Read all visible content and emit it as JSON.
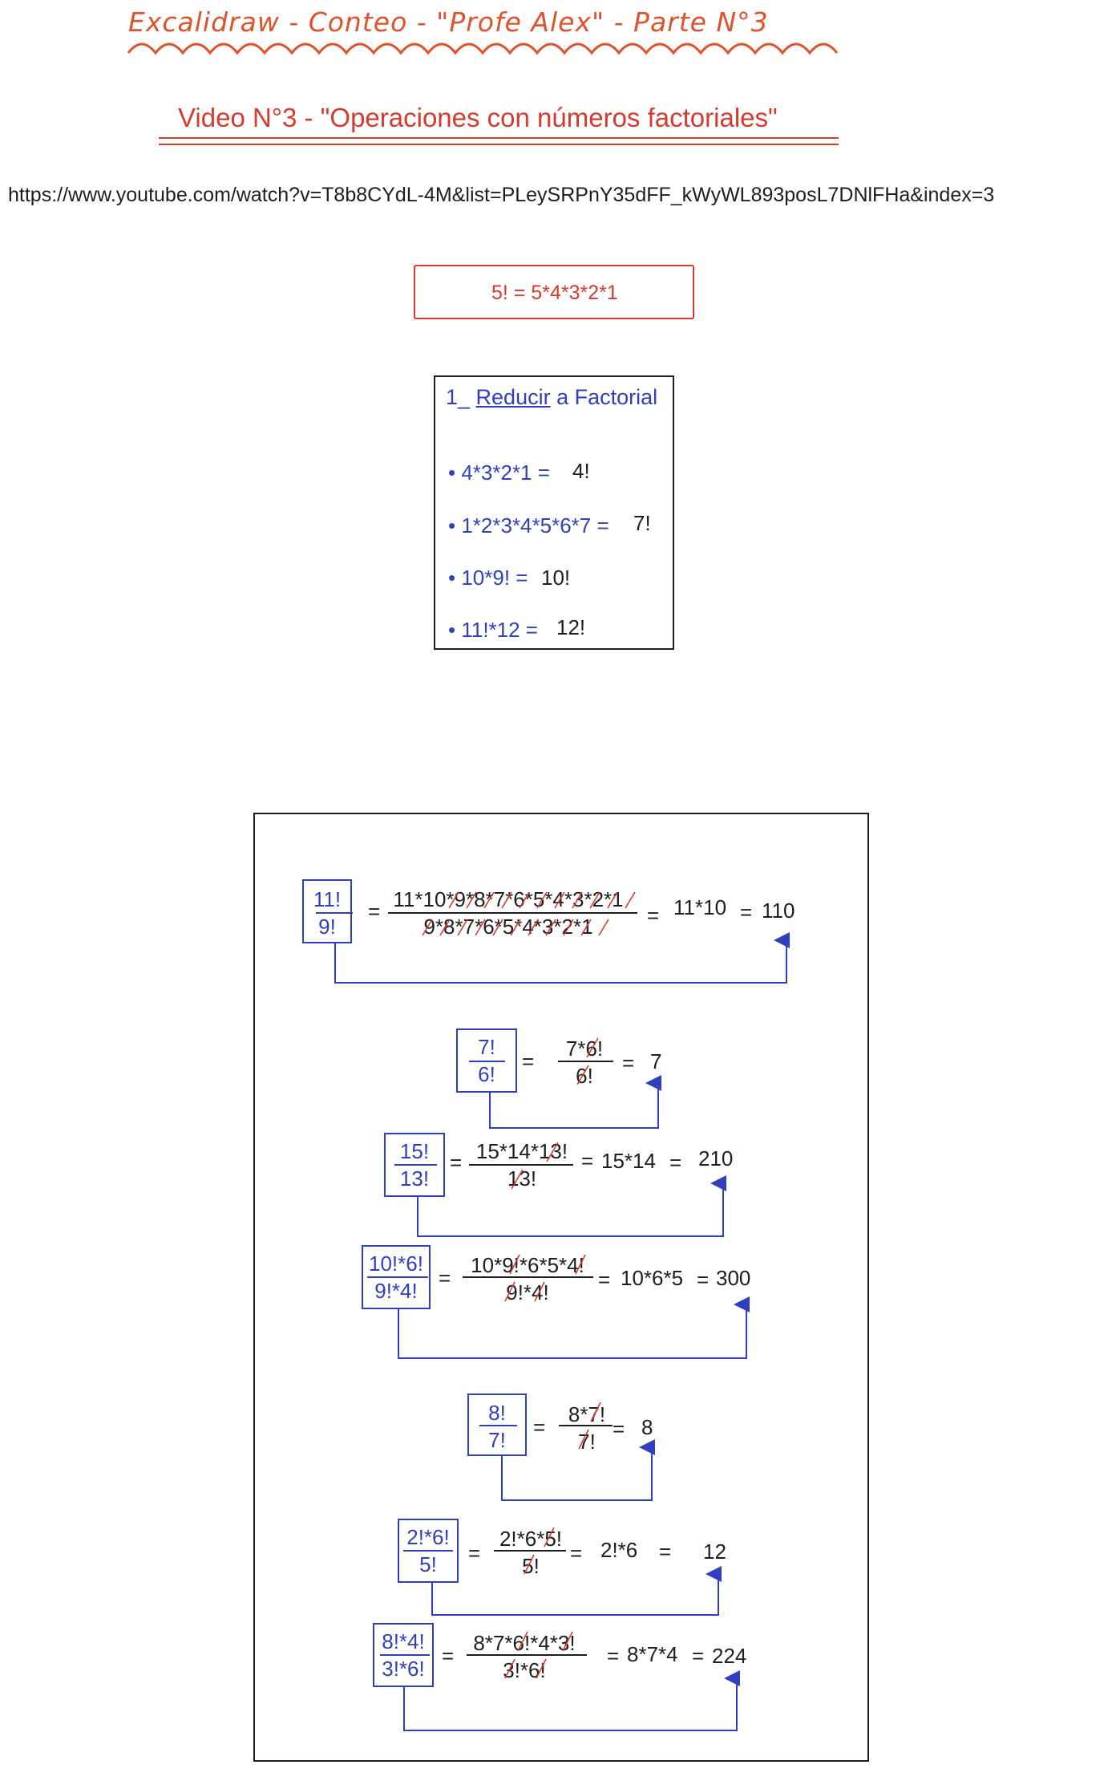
{
  "header": {
    "title": "Excalidraw - Conteo - \"Profe Alex\" - Parte N°3",
    "subtitle": "Video N°3 - \"Operaciones con números factoriales\"",
    "url": "https://www.youtube.com/watch?v=T8b8CYdL-4M&list=PLeySRPnY35dFF_kWyWL893posL7DNlFHa&index=3"
  },
  "definition": {
    "formula": "5! = 5*4*3*2*1"
  },
  "reduce": {
    "heading_prefix": "1_ ",
    "heading_underlined": "Reducir",
    "heading_suffix": " a Factorial",
    "items": [
      {
        "expr": "• 4*3*2*1 =",
        "result": "4!"
      },
      {
        "expr": "• 1*2*3*4*5*6*7 =",
        "result": "7!"
      },
      {
        "expr": "• 10*9! =",
        "result": "10!"
      },
      {
        "expr": "• 11!*12 =",
        "result": "12!"
      }
    ]
  },
  "operations": [
    {
      "num": "11!",
      "den": "9!",
      "eq": "=",
      "expand_num": "11*10*9*8*7*6*5*4*3*2*1",
      "expand_den": "9*8*7*6*5*4*3*2*1",
      "eq2": "=",
      "step": "11*10",
      "eq3": "=",
      "result": "110"
    },
    {
      "num": "7!",
      "den": "6!",
      "eq": "=",
      "expand_num": "7*6!",
      "expand_den": "6!",
      "eq2": "=",
      "result": "7"
    },
    {
      "num": "15!",
      "den": "13!",
      "eq": "=",
      "expand_num": "15*14*13!",
      "expand_den": "13!",
      "eq2": "=",
      "step": "15*14",
      "eq3": "=",
      "result": "210"
    },
    {
      "num": "10!*6!",
      "den": "9!*4!",
      "eq": "=",
      "expand_num": "10*9!*6*5*4!",
      "expand_den": "9!*4!",
      "eq2": "=",
      "step": "10*6*5",
      "eq3": "=",
      "result": "300"
    },
    {
      "num": "8!",
      "den": "7!",
      "eq": "=",
      "expand_num": "8*7!",
      "expand_den": "7!",
      "eq2": "=",
      "result": "8"
    },
    {
      "num": "2!*6!",
      "den": "5!",
      "eq": "=",
      "expand_num": "2!*6*5!",
      "expand_den": "5!",
      "eq2": "=",
      "step": "2!*6",
      "eq3": "=",
      "result": "12"
    },
    {
      "num": "8!*4!",
      "den": "3!*6!",
      "eq": "=",
      "expand_num": "8*7*6!*4*3!",
      "expand_den": "3!*6!",
      "eq2": "=",
      "step": "8*7*4",
      "eq3": "=",
      "result": "224"
    }
  ],
  "colors": {
    "red": "#d63a2c",
    "orange": "#e0522a",
    "blue": "#2f3fc0",
    "green": "#2f9e44",
    "black": "#1e1e1e"
  }
}
